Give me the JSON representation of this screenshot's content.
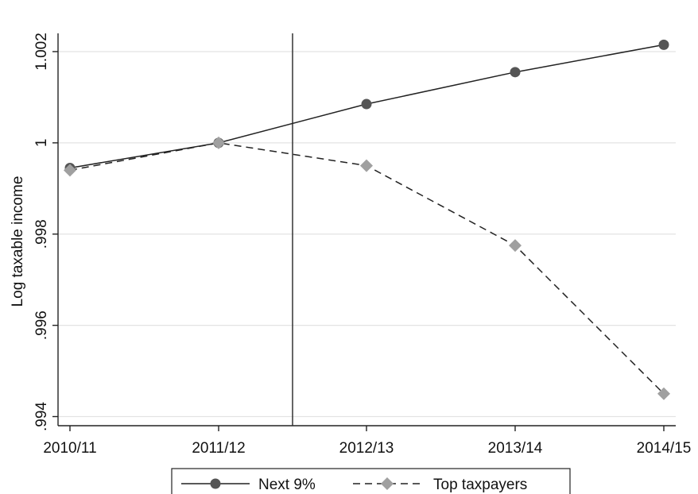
{
  "chart_data": {
    "type": "line",
    "title": "",
    "xlabel": "",
    "ylabel": "Log taxable income",
    "categories": [
      "2010/11",
      "2011/12",
      "2012/13",
      "2013/14",
      "2014/15"
    ],
    "y_ticks": [
      0.994,
      0.996,
      0.998,
      1,
      1.002
    ],
    "y_tick_labels": [
      ".994",
      ".996",
      ".998",
      "1",
      "1.002"
    ],
    "ylim": [
      0.9938,
      1.0024
    ],
    "grid": true,
    "legend_position": "bottom",
    "vertical_line_between": [
      "2011/12",
      "2012/13"
    ],
    "series": [
      {
        "name": "Next 9%",
        "values": [
          0.99945,
          1.0,
          1.00085,
          1.00155,
          1.00215
        ],
        "color": "#555555",
        "line_style": "solid",
        "marker": "circle"
      },
      {
        "name": "Top taxpayers",
        "values": [
          0.9994,
          1.0,
          0.9995,
          0.99775,
          0.9945
        ],
        "color": "#a0a0a0",
        "line_style": "dashed",
        "marker": "diamond"
      }
    ]
  }
}
